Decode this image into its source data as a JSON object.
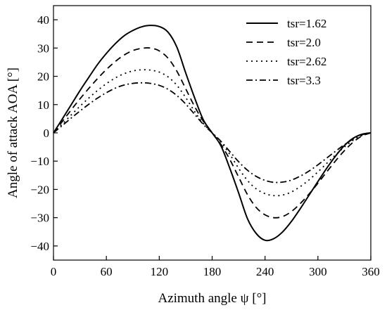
{
  "chart_data": {
    "type": "line",
    "xlabel": "Azimuth angle ψ [°]",
    "ylabel": "Angle of attack AOA [°]",
    "xlim": [
      0,
      360
    ],
    "ylim": [
      -45,
      45
    ],
    "xticks": [
      0,
      60,
      120,
      180,
      240,
      300,
      360
    ],
    "yticks": [
      -40,
      -30,
      -20,
      -10,
      0,
      10,
      20,
      30,
      40
    ],
    "grid": false,
    "legend_position": "top-right",
    "x": [
      0,
      10,
      20,
      30,
      40,
      50,
      60,
      70,
      80,
      90,
      100,
      110,
      120,
      130,
      140,
      150,
      160,
      170,
      180,
      190,
      200,
      210,
      220,
      230,
      240,
      250,
      260,
      270,
      280,
      290,
      300,
      310,
      320,
      330,
      340,
      350,
      360
    ],
    "series": [
      {
        "name": "tsr=1.62",
        "style": "solid",
        "values": [
          0,
          4.9,
          9.9,
          14.9,
          19.6,
          24.2,
          28.1,
          31.5,
          34.3,
          36.2,
          37.5,
          38.0,
          37.6,
          35.6,
          30.3,
          21.2,
          12.5,
          4.6,
          0,
          -4.6,
          -12.5,
          -21.2,
          -30.3,
          -35.6,
          -38.0,
          -37.4,
          -35.0,
          -31.3,
          -26.8,
          -22.0,
          -17.2,
          -12.5,
          -8.2,
          -4.5,
          -1.9,
          -0.5,
          0
        ]
      },
      {
        "name": "tsr=2.0",
        "style": "dashed",
        "values": [
          0,
          4.0,
          8.1,
          12.0,
          15.7,
          19.2,
          22.4,
          25.2,
          27.5,
          29.1,
          29.9,
          30.0,
          29.0,
          26.4,
          21.8,
          15.6,
          9.4,
          4.1,
          0,
          -4.1,
          -9.4,
          -15.6,
          -21.8,
          -26.4,
          -29.0,
          -30.0,
          -29.6,
          -27.8,
          -25.0,
          -21.6,
          -17.8,
          -13.8,
          -9.9,
          -6.3,
          -3.3,
          -1.1,
          0
        ]
      },
      {
        "name": "tsr=2.62",
        "style": "dotted",
        "values": [
          0,
          3.1,
          6.3,
          9.4,
          12.3,
          15.0,
          17.4,
          19.4,
          20.9,
          21.9,
          22.3,
          22.2,
          21.5,
          19.8,
          16.8,
          12.5,
          7.6,
          3.3,
          0,
          -3.3,
          -7.6,
          -12.5,
          -16.8,
          -19.8,
          -21.5,
          -22.2,
          -22.0,
          -20.9,
          -19.0,
          -16.6,
          -13.8,
          -10.8,
          -7.8,
          -5.0,
          -2.6,
          -0.9,
          0
        ]
      },
      {
        "name": "tsr=3.3",
        "style": "dashdot",
        "values": [
          0,
          2.6,
          5.2,
          7.7,
          10.1,
          12.3,
          14.2,
          15.8,
          16.9,
          17.5,
          17.7,
          17.5,
          16.8,
          15.4,
          13.2,
          10.2,
          6.6,
          3.0,
          0,
          -3.0,
          -6.6,
          -10.2,
          -13.2,
          -15.4,
          -16.8,
          -17.5,
          -17.4,
          -16.7,
          -15.3,
          -13.5,
          -11.3,
          -8.9,
          -6.5,
          -4.2,
          -2.2,
          -0.7,
          0
        ]
      }
    ]
  }
}
